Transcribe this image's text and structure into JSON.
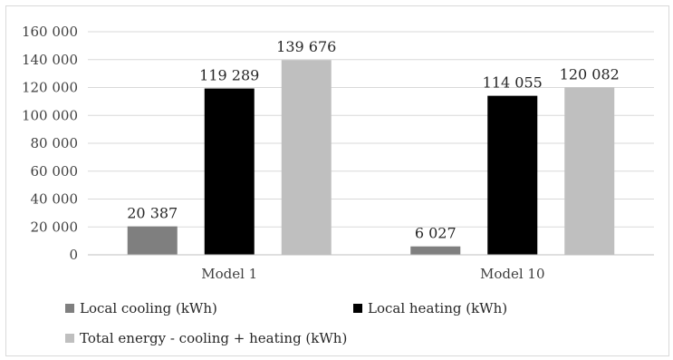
{
  "chart_data": {
    "type": "bar",
    "categories": [
      "Model 1",
      "Model 10"
    ],
    "series": [
      {
        "name": "Local cooling (kWh)",
        "values": [
          20387,
          6027
        ],
        "labels": [
          "20 387",
          "6 027"
        ],
        "color": "#7f7f7f"
      },
      {
        "name": "Local heating (kWh)",
        "values": [
          119289,
          114055
        ],
        "labels": [
          "119 289",
          "114 055"
        ],
        "color": "#000000"
      },
      {
        "name": "Total energy - cooling + heating (kWh)",
        "values": [
          139676,
          120082
        ],
        "labels": [
          "139 676",
          "120 082"
        ],
        "color": "#bfbfbf"
      }
    ],
    "title": "",
    "xlabel": "",
    "ylabel": "",
    "ylim": [
      0,
      160000
    ],
    "yticks": [
      0,
      20000,
      40000,
      60000,
      80000,
      100000,
      120000,
      140000,
      160000
    ],
    "ytick_labels": [
      "0",
      "20 000",
      "40 000",
      "60 000",
      "80 000",
      "100 000",
      "120 000",
      "140 000",
      "160 000"
    ],
    "grid": true,
    "legend_position": "bottom"
  }
}
